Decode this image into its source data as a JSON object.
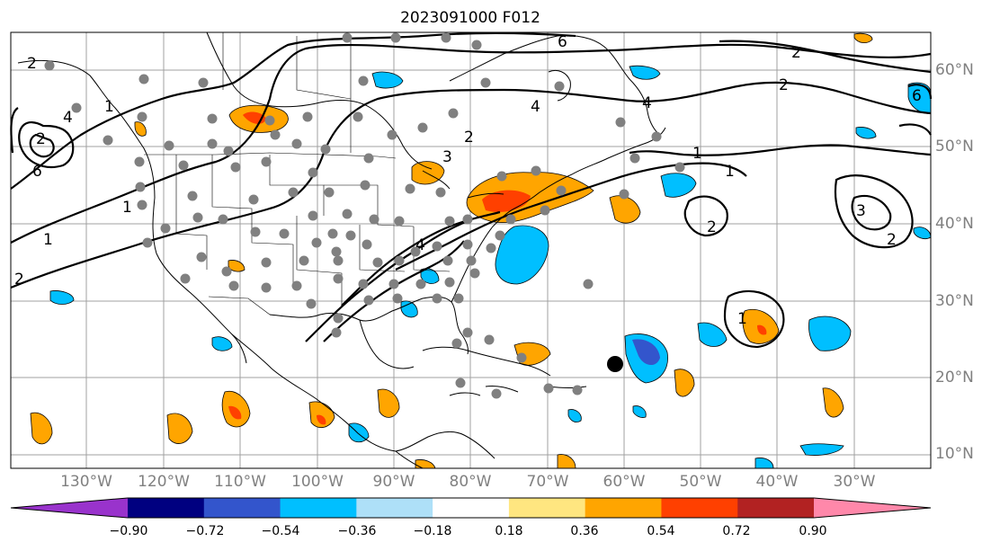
{
  "title": "2023091000 F012",
  "lat_labels": [
    "60°N",
    "50°N",
    "40°N",
    "30°N",
    "20°N",
    "10°N"
  ],
  "lon_labels": [
    "130°W",
    "120°W",
    "110°W",
    "100°W",
    "90°W",
    "80°W",
    "70°W",
    "60°W",
    "50°W",
    "40°W",
    "30°W"
  ],
  "contour_labels": [
    "2",
    "4",
    "6",
    "1",
    "6",
    "4",
    "2",
    "1",
    "1",
    "2",
    "4",
    "6",
    "2",
    "3",
    "1",
    "1",
    "2",
    "2",
    "2",
    "3",
    "4",
    "1",
    "2"
  ],
  "colorbar": {
    "ticks": [
      "−0.90",
      "−0.72",
      "−0.54",
      "−0.36",
      "−0.18",
      "0.18",
      "0.36",
      "0.54",
      "0.72",
      "0.90"
    ],
    "colors": [
      "#9933cc",
      "#000080",
      "#3355cc",
      "#00bfff",
      "#aee0f8",
      "#ffffff",
      "#ffe680",
      "#ffa500",
      "#ff4000",
      "#b22222",
      "#ff88aa"
    ]
  },
  "colors": {
    "station_dot": "#808080",
    "marker_dot": "#000000",
    "grid": "#a0a0a0",
    "label_gray": "#808080"
  },
  "marker_label": ""
}
